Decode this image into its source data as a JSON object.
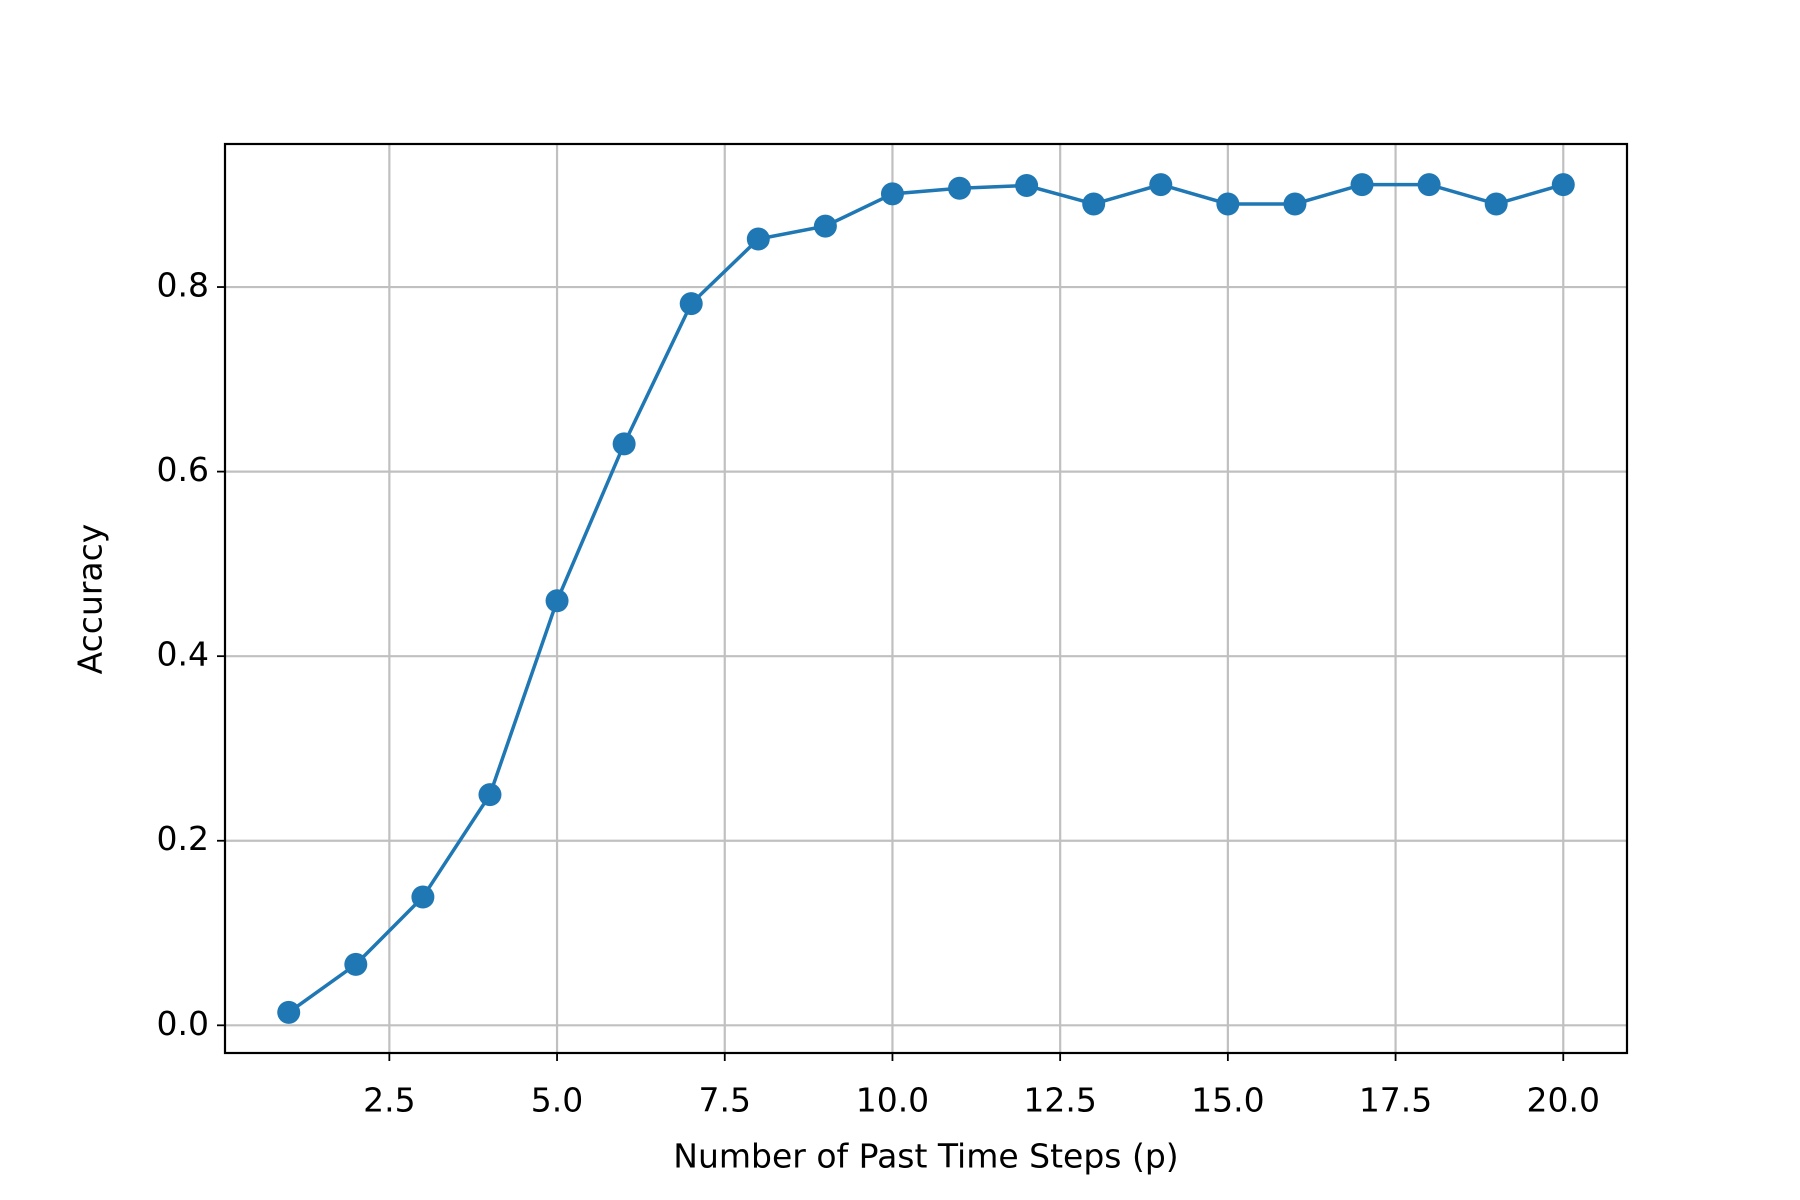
{
  "chart_data": {
    "type": "line",
    "xlabel": "Number of Past Time Steps (p)",
    "ylabel": "Accuracy",
    "x": [
      1,
      2,
      3,
      4,
      5,
      6,
      7,
      8,
      9,
      10,
      11,
      12,
      13,
      14,
      15,
      16,
      17,
      18,
      19,
      20
    ],
    "series": [
      {
        "color": "#1f77b4",
        "values": [
          0.014,
          0.066,
          0.139,
          0.25,
          0.46,
          0.63,
          0.782,
          0.852,
          0.866,
          0.901,
          0.907,
          0.91,
          0.89,
          0.911,
          0.89,
          0.89,
          0.911,
          0.911,
          0.89,
          0.911
        ]
      }
    ],
    "xlim": [
      0.05,
      20.95
    ],
    "ylim": [
      -0.03,
      0.955
    ],
    "xticks": [
      2.5,
      {
        "value": 5,
        "label": "5.0"
      },
      7.5,
      {
        "value": 10,
        "label": "10.0"
      },
      12.5,
      {
        "value": 15,
        "label": "15.0"
      },
      17.5,
      {
        "value": 20,
        "label": "20.0"
      }
    ],
    "yticks": [
      {
        "value": 0,
        "label": "0.0"
      },
      0.2,
      0.4,
      0.6,
      0.8
    ],
    "grid": true
  }
}
